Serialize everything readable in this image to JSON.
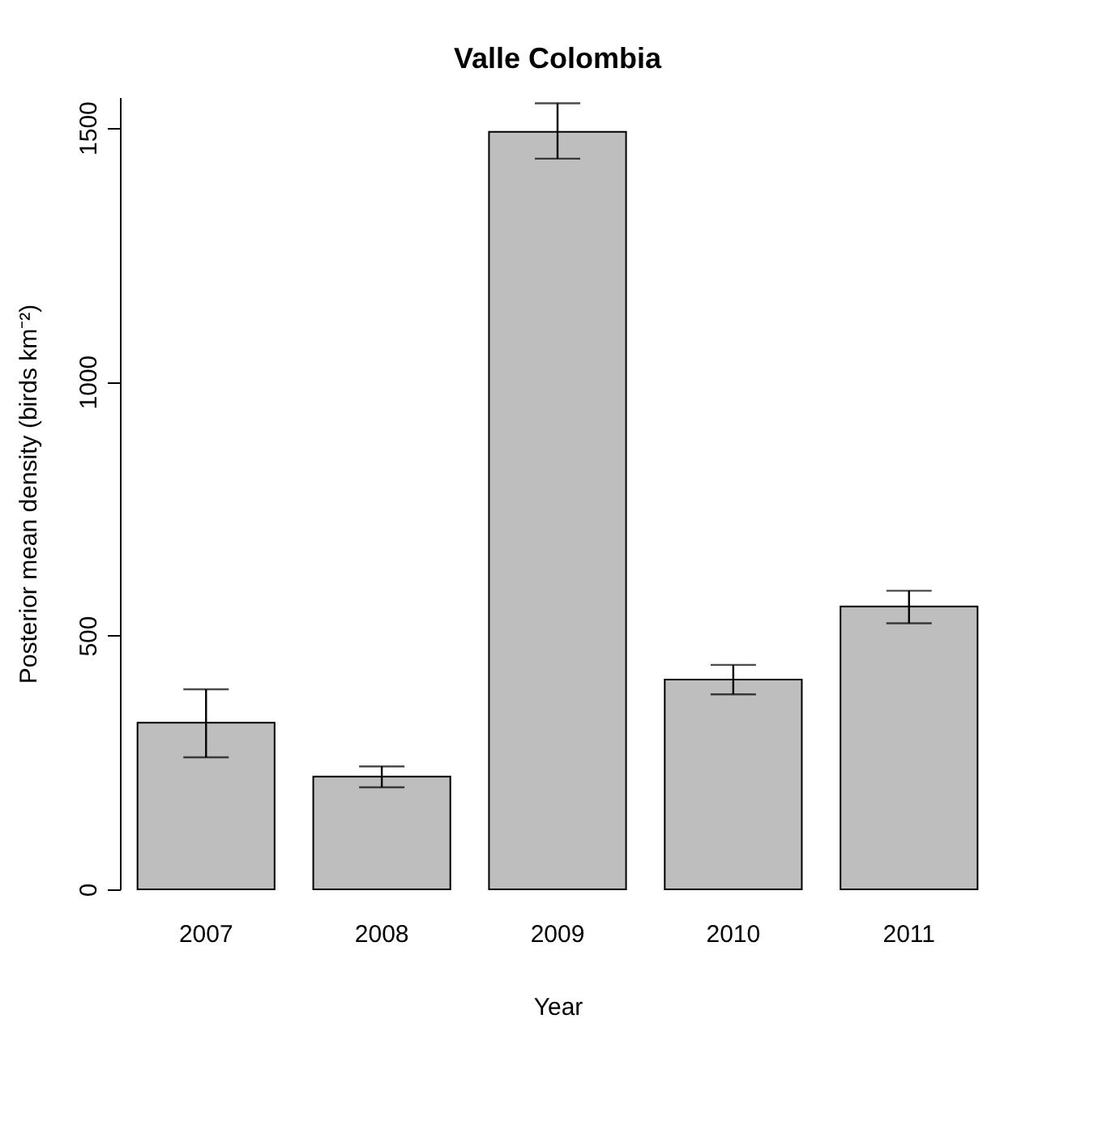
{
  "chart_data": {
    "type": "bar",
    "title": "Valle Colombia",
    "xlabel": "Year",
    "ylabel": "Posterior mean density (birds km⁻²)",
    "categories": [
      "2007",
      "2008",
      "2009",
      "2010",
      "2011"
    ],
    "values": [
      328,
      222,
      1492,
      413,
      557
    ],
    "errors": [
      [
        260,
        394
      ],
      [
        201,
        242
      ],
      [
        1439,
        1548
      ],
      [
        384,
        442
      ],
      [
        524,
        588
      ]
    ],
    "color": "#bebebe",
    "ylim": [
      0,
      1560
    ],
    "yticks": [
      0,
      500,
      1000,
      1500
    ],
    "grid": false
  }
}
